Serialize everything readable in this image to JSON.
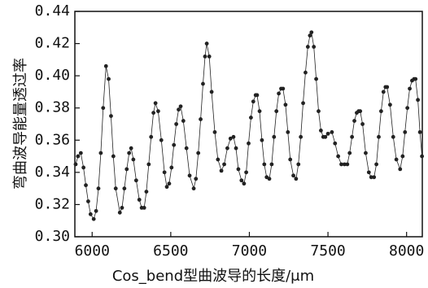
{
  "chart_data": {
    "type": "line",
    "x_label": "Cos_bend型曲波导的长度/μm",
    "y_label": "弯曲波导能量透过率",
    "color": "#222222",
    "xlim": [
      5890,
      8100
    ],
    "xticks": [
      6000,
      6500,
      7000,
      7500,
      8000
    ],
    "ylim": [
      0.3,
      0.44
    ],
    "yticks": [
      {
        "value": 0.3,
        "label": "0.30"
      },
      0.32,
      0.34,
      0.36,
      0.38,
      {
        "value": 0.4,
        "label": "0.40"
      },
      0.42,
      0.44
    ],
    "x": [
      5895,
      5910,
      5928,
      5945,
      5960,
      5975,
      5990,
      6010,
      6025,
      6040,
      6055,
      6070,
      6088,
      6105,
      6120,
      6135,
      6150,
      6176,
      6190,
      6205,
      6220,
      6235,
      6248,
      6262,
      6280,
      6300,
      6315,
      6331,
      6345,
      6360,
      6375,
      6390,
      6403,
      6420,
      6440,
      6460,
      6475,
      6490,
      6505,
      6520,
      6535,
      6550,
      6563,
      6580,
      6600,
      6620,
      6646,
      6660,
      6675,
      6690,
      6705,
      6718,
      6729,
      6745,
      6760,
      6780,
      6800,
      6822,
      6840,
      6860,
      6880,
      6899,
      6915,
      6930,
      6950,
      6966,
      6980,
      6995,
      7010,
      7025,
      7040,
      7049,
      7065,
      7080,
      7095,
      7110,
      7127,
      7142,
      7157,
      7172,
      7187,
      7202,
      7214,
      7230,
      7245,
      7260,
      7280,
      7297,
      7312,
      7327,
      7342,
      7357,
      7372,
      7385,
      7395,
      7410,
      7425,
      7440,
      7455,
      7470,
      7483,
      7500,
      7525,
      7545,
      7565,
      7585,
      7605,
      7623,
      7638,
      7653,
      7668,
      7683,
      7695,
      7705,
      7720,
      7740,
      7760,
      7775,
      7793,
      7808,
      7823,
      7838,
      7853,
      7866,
      7876,
      7895,
      7915,
      7935,
      7959,
      7975,
      7990,
      8005,
      8020,
      8035,
      8048,
      8057,
      8072,
      8085,
      8098
    ],
    "values": [
      0.345,
      0.35,
      0.352,
      0.343,
      0.332,
      0.322,
      0.314,
      0.311,
      0.316,
      0.33,
      0.352,
      0.38,
      0.406,
      0.398,
      0.375,
      0.35,
      0.33,
      0.315,
      0.318,
      0.33,
      0.342,
      0.352,
      0.355,
      0.348,
      0.335,
      0.323,
      0.318,
      0.318,
      0.328,
      0.345,
      0.362,
      0.377,
      0.383,
      0.378,
      0.36,
      0.34,
      0.331,
      0.333,
      0.343,
      0.357,
      0.37,
      0.379,
      0.381,
      0.372,
      0.355,
      0.338,
      0.33,
      0.336,
      0.352,
      0.373,
      0.395,
      0.412,
      0.42,
      0.412,
      0.39,
      0.365,
      0.348,
      0.341,
      0.345,
      0.355,
      0.361,
      0.362,
      0.355,
      0.342,
      0.335,
      0.333,
      0.34,
      0.358,
      0.374,
      0.384,
      0.388,
      0.388,
      0.378,
      0.36,
      0.345,
      0.337,
      0.336,
      0.345,
      0.362,
      0.378,
      0.389,
      0.392,
      0.392,
      0.382,
      0.365,
      0.348,
      0.338,
      0.336,
      0.345,
      0.362,
      0.383,
      0.402,
      0.418,
      0.425,
      0.427,
      0.418,
      0.398,
      0.378,
      0.366,
      0.362,
      0.362,
      0.364,
      0.365,
      0.358,
      0.35,
      0.345,
      0.345,
      0.345,
      0.352,
      0.362,
      0.372,
      0.377,
      0.378,
      0.378,
      0.37,
      0.352,
      0.34,
      0.337,
      0.337,
      0.345,
      0.362,
      0.378,
      0.39,
      0.393,
      0.393,
      0.382,
      0.362,
      0.348,
      0.342,
      0.35,
      0.365,
      0.38,
      0.392,
      0.397,
      0.398,
      0.398,
      0.385,
      0.365,
      0.35
    ]
  }
}
